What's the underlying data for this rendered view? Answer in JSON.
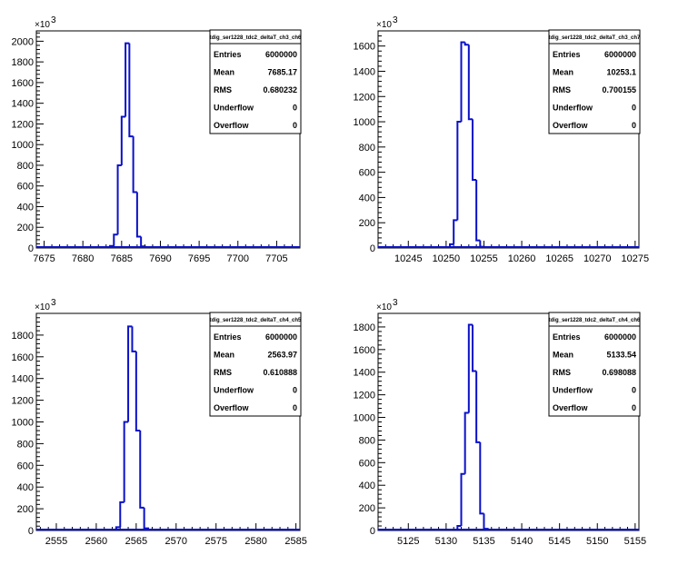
{
  "chart_data": [
    {
      "type": "bar",
      "stats_title": "tdig_ser1228_tdc2_deltaT_ch3_ch6",
      "xlim": [
        7674,
        7708
      ],
      "ylim": [
        0,
        2100
      ],
      "y_multiplier_label": "×10",
      "y_multiplier_exp": "3",
      "xticks": [
        "7675",
        "7680",
        "7685",
        "7690",
        "7695",
        "7700",
        "7705"
      ],
      "yticks": [
        "0",
        "200",
        "400",
        "600",
        "800",
        "1000",
        "1200",
        "1400",
        "1600",
        "1800",
        "2000"
      ],
      "bin_width": 0.5,
      "bins": [
        [
          7683.5,
          20
        ],
        [
          7684.0,
          130
        ],
        [
          7684.5,
          800
        ],
        [
          7685.0,
          1270
        ],
        [
          7685.5,
          1980
        ],
        [
          7686.0,
          1080
        ],
        [
          7686.5,
          540
        ],
        [
          7687.0,
          110
        ],
        [
          7687.5,
          15
        ]
      ],
      "stats": [
        {
          "label": "Entries",
          "value": "6000000"
        },
        {
          "label": "Mean",
          "value": "7685.17"
        },
        {
          "label": "RMS",
          "value": "0.680232"
        },
        {
          "label": "Underflow",
          "value": "0"
        },
        {
          "label": "Overflow",
          "value": "0"
        }
      ]
    },
    {
      "type": "bar",
      "stats_title": "tdig_ser1228_tdc2_deltaT_ch3_ch7",
      "xlim": [
        10241,
        10275.5
      ],
      "ylim": [
        0,
        1720
      ],
      "y_multiplier_label": "×10",
      "y_multiplier_exp": "3",
      "xticks": [
        "10245",
        "10250",
        "10255",
        "10260",
        "10265",
        "10270",
        "10275"
      ],
      "yticks": [
        "0",
        "200",
        "400",
        "600",
        "800",
        "1000",
        "1200",
        "1400",
        "1600"
      ],
      "bin_width": 0.5,
      "bins": [
        [
          10250.5,
          30
        ],
        [
          10251.0,
          220
        ],
        [
          10251.5,
          1000
        ],
        [
          10252.0,
          1630
        ],
        [
          10252.5,
          1610
        ],
        [
          10253.0,
          1020
        ],
        [
          10253.5,
          540
        ],
        [
          10254.0,
          60
        ],
        [
          10254.5,
          10
        ]
      ],
      "stats": [
        {
          "label": "Entries",
          "value": "6000000"
        },
        {
          "label": "Mean",
          "value": "10253.1"
        },
        {
          "label": "RMS",
          "value": "0.700155"
        },
        {
          "label": "Underflow",
          "value": "0"
        },
        {
          "label": "Overflow",
          "value": "0"
        }
      ]
    },
    {
      "type": "bar",
      "stats_title": "tdig_ser1228_tdc2_deltaT_ch4_ch5",
      "xlim": [
        2552.5,
        2585.5
      ],
      "ylim": [
        0,
        2000
      ],
      "y_multiplier_label": "×10",
      "y_multiplier_exp": "3",
      "xticks": [
        "2555",
        "2560",
        "2565",
        "2570",
        "2575",
        "2580",
        "2585"
      ],
      "yticks": [
        "0",
        "200",
        "400",
        "600",
        "800",
        "1000",
        "1200",
        "1400",
        "1600",
        "1800"
      ],
      "bin_width": 0.5,
      "bins": [
        [
          2562.5,
          30
        ],
        [
          2563.0,
          260
        ],
        [
          2563.5,
          1000
        ],
        [
          2564.0,
          1880
        ],
        [
          2564.5,
          1650
        ],
        [
          2565.0,
          920
        ],
        [
          2565.5,
          210
        ],
        [
          2566.0,
          20
        ]
      ],
      "stats": [
        {
          "label": "Entries",
          "value": "6000000"
        },
        {
          "label": "Mean",
          "value": "2563.97"
        },
        {
          "label": "RMS",
          "value": "0.610888"
        },
        {
          "label": "Underflow",
          "value": "0"
        },
        {
          "label": "Overflow",
          "value": "0"
        }
      ]
    },
    {
      "type": "bar",
      "stats_title": "tdig_ser1228_tdc2_deltaT_ch4_ch6",
      "xlim": [
        5121,
        5155.5
      ],
      "ylim": [
        0,
        1920
      ],
      "y_multiplier_label": "×10",
      "y_multiplier_exp": "3",
      "xticks": [
        "5125",
        "5130",
        "5135",
        "5140",
        "5145",
        "5150",
        "5155"
      ],
      "yticks": [
        "0",
        "200",
        "400",
        "600",
        "800",
        "1000",
        "1200",
        "1400",
        "1600",
        "1800"
      ],
      "bin_width": 0.5,
      "bins": [
        [
          5131.5,
          40
        ],
        [
          5132.0,
          500
        ],
        [
          5132.5,
          1040
        ],
        [
          5133.0,
          1820
        ],
        [
          5133.5,
          1410
        ],
        [
          5134.0,
          780
        ],
        [
          5134.5,
          150
        ],
        [
          5135.0,
          15
        ]
      ],
      "stats": [
        {
          "label": "Entries",
          "value": "6000000"
        },
        {
          "label": "Mean",
          "value": "5133.54"
        },
        {
          "label": "RMS",
          "value": "0.698088"
        },
        {
          "label": "Underflow",
          "value": "0"
        },
        {
          "label": "Overflow",
          "value": "0"
        }
      ]
    }
  ]
}
